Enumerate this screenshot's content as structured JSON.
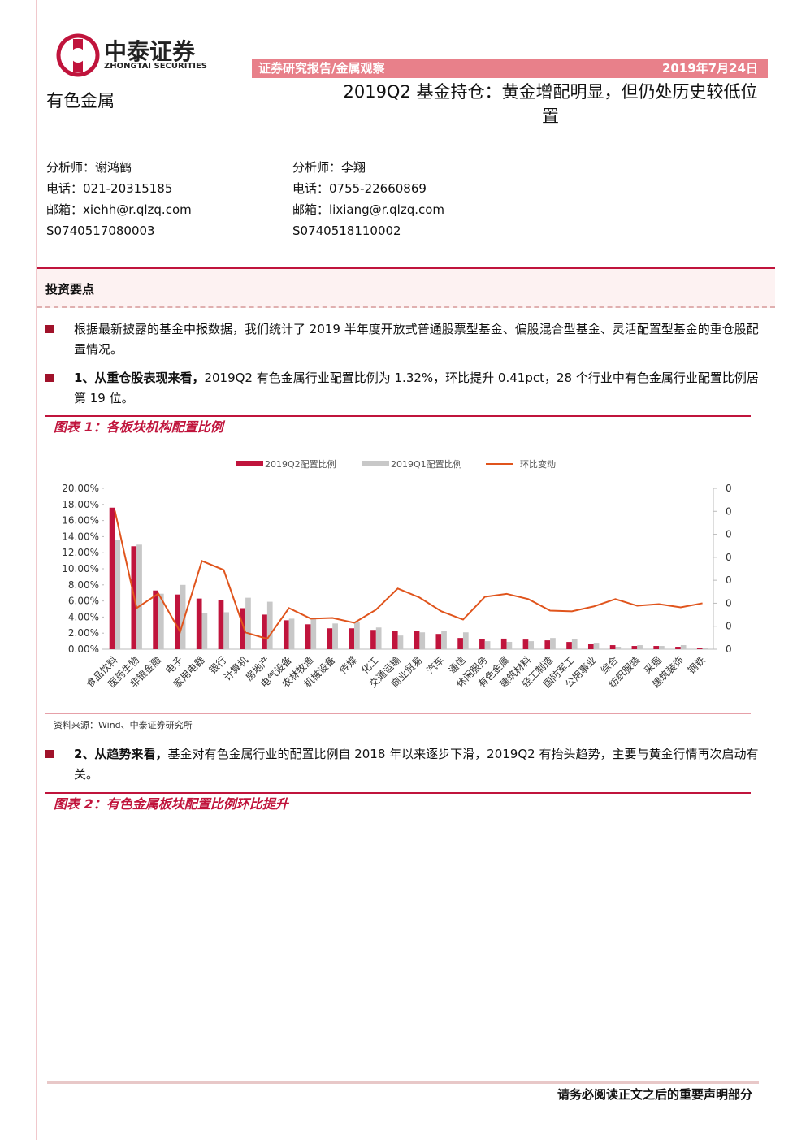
{
  "header": {
    "brand": "中泰证券",
    "brand_en": "ZHONGTAI SECURITIES",
    "banner_left": "证券研究报告/金属观察",
    "banner_right": "2019年7月24日",
    "sector": "有色金属",
    "title": "2019Q2 基金持仓：黄金增配明显，但仍处历史较低位置"
  },
  "analysts": [
    {
      "name": "分析师：谢鸿鹤",
      "phone": "电话：021-20315185",
      "email": "邮箱：xiehh@r.qlzq.com",
      "id": "S0740517080003"
    },
    {
      "name": "分析师：李翔",
      "phone": "电话：0755-22660869",
      "email": "邮箱：lixiang@r.qlzq.com",
      "id": "S0740518110002"
    }
  ],
  "section": "投资要点",
  "bullets": [
    {
      "text": "根据最新披露的基金中报数据，我们统计了 2019 半年度开放式普通股票型基金、偏股混合型基金、灵活配置型基金的重仓股配置情况。"
    },
    {
      "lead": "1、从重仓股表现来看，",
      "text": "2019Q2 有色金属行业配置比例为 1.32%，环比提升 0.41pct，28 个行业中有色金属行业配置比例居第 19 位。"
    },
    {
      "lead": "2、从趋势来看，",
      "text": "基金对有色金属行业的配置比例自 2018 年以来逐步下滑，2019Q2 有抬头趋势，主要与黄金行情再次启动有关。"
    }
  ],
  "figure1": {
    "title": "图表 1：各板块机构配置比例",
    "source": "资料来源：Wind、中泰证券研究所"
  },
  "figure2": {
    "title": "图表 2：有色金属板块配置比例环比提升"
  },
  "chart_data": {
    "type": "bar",
    "categories": [
      "食品饮料",
      "医药生物",
      "非银金融",
      "电子",
      "家用电器",
      "银行",
      "计算机",
      "房地产",
      "电气设备",
      "农林牧渔",
      "机械设备",
      "传媒",
      "化工",
      "交通运输",
      "商业贸易",
      "汽车",
      "通信",
      "休闲服务",
      "有色金属",
      "建筑材料",
      "轻工制造",
      "国防军工",
      "公用事业",
      "综合",
      "纺织服装",
      "采掘",
      "建筑装饰",
      "钢铁"
    ],
    "series": [
      {
        "name": "2019Q2配置比例",
        "color": "#c0143c",
        "values": [
          17.6,
          12.8,
          7.3,
          6.8,
          6.3,
          6.1,
          5.1,
          4.3,
          3.6,
          3.1,
          2.6,
          2.6,
          2.4,
          2.3,
          2.3,
          1.9,
          1.4,
          1.3,
          1.32,
          1.2,
          1.1,
          0.9,
          0.7,
          0.5,
          0.4,
          0.4,
          0.3,
          0.1
        ]
      },
      {
        "name": "2019Q1配置比例",
        "color": "#c8c8c8",
        "values": [
          13.6,
          13.0,
          6.9,
          8.0,
          4.5,
          4.6,
          6.4,
          5.9,
          3.8,
          3.8,
          3.2,
          3.4,
          2.7,
          1.7,
          2.1,
          2.3,
          2.1,
          1.0,
          0.91,
          1.0,
          1.4,
          1.3,
          0.8,
          0.3,
          0.5,
          0.4,
          0.5,
          0.1
        ]
      },
      {
        "name": "环比变动",
        "color": "#e0541c",
        "type": "line",
        "axis": "y2",
        "values": [
          0.0403,
          -0.0021,
          0.0042,
          -0.0124,
          0.0184,
          0.0145,
          -0.0127,
          -0.0155,
          -0.0021,
          -0.0067,
          -0.0064,
          -0.0085,
          -0.0028,
          0.0064,
          0.0025,
          -0.0035,
          -0.0071,
          0.0028,
          0.0041,
          0.0018,
          -0.0032,
          -0.0035,
          -0.0014,
          0.0018,
          -0.0011,
          -0.0004,
          -0.0018,
          0.0
        ]
      }
    ],
    "ylim": [
      0,
      20
    ],
    "yticks": [
      {
        "value": 0,
        "label": "0.00%"
      },
      {
        "value": 2,
        "label": "2.00%"
      },
      {
        "value": 4,
        "label": "4.00%"
      },
      {
        "value": 6,
        "label": "6.00%"
      },
      {
        "value": 8,
        "label": "8.00%"
      },
      {
        "value": 10,
        "label": "10.00%"
      },
      {
        "value": 12,
        "label": "12.00%"
      },
      {
        "value": 14,
        "label": "14.00%"
      },
      {
        "value": 16,
        "label": "16.00%"
      },
      {
        "value": 18,
        "label": "18.00%"
      },
      {
        "value": 20,
        "label": "20.00%"
      }
    ],
    "y2lim": [
      -0.02,
      0.05
    ],
    "y2ticks": [
      {
        "value": -0.02,
        "label": "0"
      },
      {
        "value": -0.01,
        "label": "0"
      },
      {
        "value": 0,
        "label": "0"
      },
      {
        "value": 0.01,
        "label": "0"
      },
      {
        "value": 0.02,
        "label": "0"
      },
      {
        "value": 0.03,
        "label": "0"
      },
      {
        "value": 0.04,
        "label": "0"
      },
      {
        "value": 0.05,
        "label": "0"
      }
    ],
    "legend": "top",
    "grid": false
  },
  "footer": "请务必阅读正文之后的重要声明部分"
}
